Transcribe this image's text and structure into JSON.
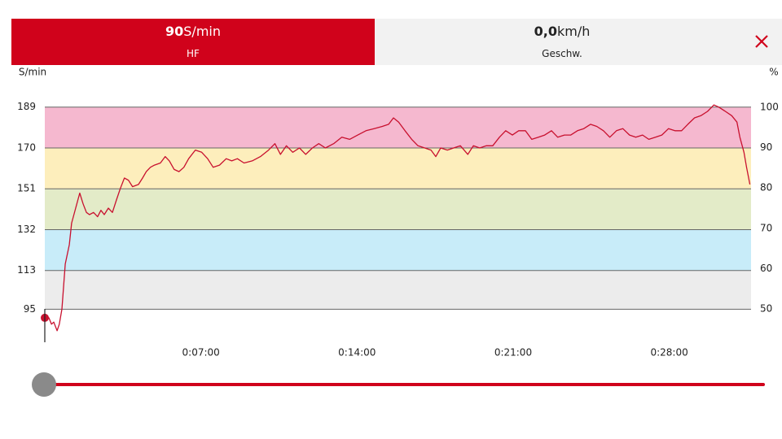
{
  "tabs": [
    {
      "value": "90",
      "unit": "S/min",
      "label": "HF"
    },
    {
      "value": "0,0",
      "unit": "km/h",
      "label": "Geschw."
    }
  ],
  "chart_data": {
    "type": "line",
    "y_axis_label": "S/min",
    "y2_axis_label": "%",
    "x": [
      0,
      11,
      18,
      24,
      33,
      39,
      46,
      55,
      66,
      72,
      83,
      94,
      103,
      112,
      120,
      131,
      142,
      151,
      160,
      171,
      182,
      193,
      203,
      214,
      225,
      236,
      252,
      263,
      273,
      284,
      295,
      311,
      324,
      335,
      348,
      361,
      374,
      387,
      405,
      422,
      438,
      453,
      470,
      488,
      503,
      518,
      536,
      558,
      580,
      602,
      619,
      634,
      650,
      667,
      685,
      702,
      720,
      737,
      755,
      777,
      799,
      820,
      842,
      864,
      886,
      908,
      925,
      938,
      952,
      969,
      987,
      1004,
      1022,
      1039,
      1052,
      1065,
      1083,
      1100,
      1118,
      1138,
      1153,
      1170,
      1188,
      1205,
      1223,
      1240,
      1258,
      1275,
      1293,
      1310,
      1328,
      1345,
      1363,
      1380,
      1398,
      1415,
      1433,
      1450,
      1468,
      1485,
      1503,
      1520,
      1538,
      1555,
      1573,
      1590,
      1608,
      1625,
      1643,
      1660,
      1678,
      1695,
      1713,
      1730,
      1748,
      1765,
      1783,
      1800,
      1813,
      1831,
      1848,
      1862,
      1870,
      1881,
      1888,
      1897
    ],
    "series": [
      {
        "name": "HF",
        "color": "#c8102e",
        "values": [
          91,
          91,
          88,
          89,
          85,
          88,
          95,
          116,
          125,
          135,
          142,
          149,
          144,
          140,
          139,
          140,
          138,
          141,
          139,
          142,
          140,
          146,
          151,
          156,
          155,
          152,
          153,
          156,
          159,
          161,
          162,
          163,
          166,
          164,
          160,
          159,
          161,
          165,
          169,
          168,
          165,
          161,
          162,
          165,
          164,
          165,
          163,
          164,
          166,
          169,
          172,
          167,
          171,
          168,
          170,
          167,
          170,
          172,
          170,
          172,
          175,
          174,
          176,
          178,
          179,
          180,
          181,
          184,
          182,
          178,
          174,
          171,
          170,
          169,
          166,
          170,
          169,
          170,
          171,
          167,
          171,
          170,
          171,
          171,
          175,
          178,
          176,
          178,
          178,
          174,
          175,
          176,
          178,
          175,
          176,
          176,
          178,
          179,
          181,
          180,
          178,
          175,
          178,
          179,
          176,
          175,
          176,
          174,
          175,
          176,
          179,
          178,
          178,
          181,
          184,
          185,
          187,
          190,
          189,
          187,
          185,
          182,
          175,
          168,
          161,
          153
        ]
      }
    ],
    "xlim": [
      0,
      1900
    ],
    "xticks": [
      {
        "value": 420,
        "label": "0:07:00"
      },
      {
        "value": 840,
        "label": "0:14:00"
      },
      {
        "value": 1260,
        "label": "0:21:00"
      },
      {
        "value": 1680,
        "label": "0:28:00"
      }
    ],
    "ylim": [
      80,
      201
    ],
    "yticks": [
      95,
      113,
      132,
      151,
      170,
      189
    ],
    "y2lim": [
      42,
      106.4
    ],
    "y2ticks": [
      50,
      60,
      70,
      80,
      90,
      100
    ],
    "zone_colors": [
      "#ececec",
      "#c8ecf9",
      "#e3ebc8",
      "#fdeebc",
      "#f5b8cf"
    ],
    "grid": true
  }
}
